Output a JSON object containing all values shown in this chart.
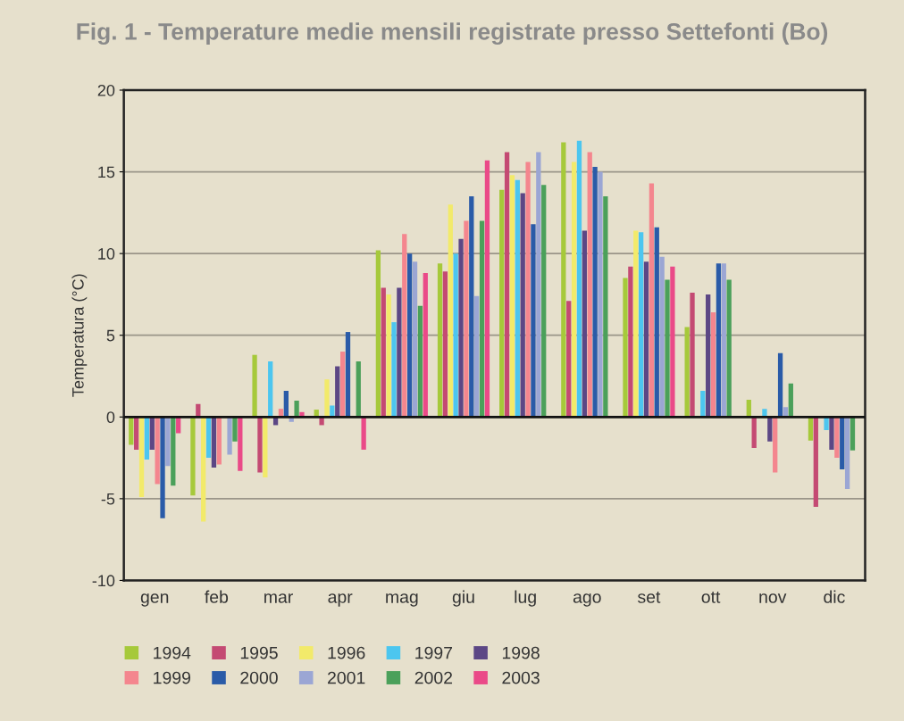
{
  "chart_data": {
    "type": "bar",
    "title": "Fig. 1 - Temperature medie mensili registrate presso Settefonti (Bo)",
    "ylabel": "Temperatura (°C)",
    "categories": [
      "gen",
      "feb",
      "mar",
      "apr",
      "mag",
      "giu",
      "lug",
      "ago",
      "set",
      "ott",
      "nov",
      "dic"
    ],
    "series": [
      {
        "name": "1994",
        "color": "#a6c93a",
        "values": [
          -1.7,
          -4.8,
          3.8,
          0.45,
          10.2,
          9.4,
          13.9,
          16.8,
          8.5,
          5.5,
          1.05,
          -1.45
        ]
      },
      {
        "name": "1995",
        "color": "#c44a73",
        "values": [
          -2.0,
          0.8,
          -3.4,
          -0.5,
          7.9,
          8.9,
          16.2,
          7.1,
          9.2,
          7.6,
          -1.9,
          -5.5
        ]
      },
      {
        "name": "1996",
        "color": "#f2ea6a",
        "values": [
          -4.9,
          -6.4,
          -3.7,
          2.3,
          7.5,
          13.0,
          14.8,
          15.6,
          11.4,
          null,
          null,
          null
        ]
      },
      {
        "name": "1997",
        "color": "#4cc6ef",
        "values": [
          -2.6,
          -2.5,
          3.4,
          0.7,
          5.8,
          10.0,
          14.5,
          16.9,
          11.3,
          1.6,
          0.5,
          -0.8
        ]
      },
      {
        "name": "1998",
        "color": "#5c4785",
        "values": [
          -2.0,
          -3.1,
          -0.5,
          3.1,
          7.9,
          10.9,
          13.7,
          11.4,
          9.5,
          7.5,
          -1.5,
          -2.0
        ]
      },
      {
        "name": "1999",
        "color": "#f4868e",
        "values": [
          -4.1,
          -2.9,
          0.5,
          4.0,
          11.2,
          12.0,
          15.6,
          16.2,
          14.3,
          6.4,
          -3.4,
          -2.5
        ]
      },
      {
        "name": "2000",
        "color": "#2a5ba8",
        "values": [
          -6.2,
          null,
          1.6,
          5.2,
          10.0,
          13.5,
          11.8,
          15.3,
          11.6,
          9.4,
          3.9,
          -3.2
        ]
      },
      {
        "name": "2001",
        "color": "#9ba6d4",
        "values": [
          -3.0,
          -2.3,
          -0.3,
          null,
          9.5,
          7.4,
          16.2,
          15.0,
          9.8,
          9.4,
          0.6,
          -4.4
        ]
      },
      {
        "name": "2002",
        "color": "#4ba05a",
        "values": [
          -4.2,
          -1.5,
          1.0,
          3.4,
          6.8,
          12.0,
          14.2,
          13.5,
          8.4,
          8.4,
          2.05,
          -2.05
        ]
      },
      {
        "name": "2003",
        "color": "#ea4a88",
        "values": [
          -1.0,
          -3.3,
          0.3,
          -2.0,
          8.8,
          15.7,
          null,
          null,
          9.2,
          null,
          null,
          null
        ]
      }
    ],
    "ylim": [
      -10,
      20
    ],
    "yticks": [
      -10,
      -5,
      0,
      5,
      10,
      15,
      20
    ],
    "grid": "y",
    "legend": "bottom",
    "ref_lines": [
      {
        "axis": "y",
        "value": 0,
        "color": "#111111"
      }
    ]
  }
}
